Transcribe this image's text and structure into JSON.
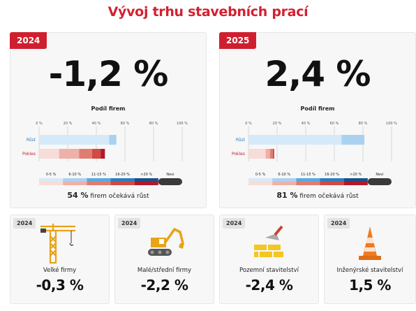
{
  "title": "Vývoj trhu stavebních prací",
  "cards": [
    {
      "year": "2024",
      "headline": "-1,2 %",
      "chart_title": "Podíl firem",
      "axis_ticks": [
        "0 %",
        "20 %",
        "40 %",
        "60 %",
        "80 %",
        "100 %"
      ],
      "row_labels": [
        "Růst",
        "Pokles"
      ],
      "legend_labels": [
        "0-5 %",
        "6-10 %",
        "11-15 %",
        "16-20 %",
        ">20 %",
        "Nevi"
      ],
      "caption_pct": "54 %",
      "caption_text": "firem očekává růst"
    },
    {
      "year": "2025",
      "headline": "2,4 %",
      "chart_title": "Podíl firem",
      "axis_ticks": [
        "0 %",
        "20 %",
        "40 %",
        "60 %",
        "80 %",
        "100 %"
      ],
      "row_labels": [
        "Růst",
        "Pokles"
      ],
      "legend_labels": [
        "0-5 %",
        "6-10 %",
        "11-15 %",
        "16-20 %",
        ">20 %",
        "Nevi"
      ],
      "caption_pct": "81 %",
      "caption_text": "firem očekává růst"
    }
  ],
  "segments": [
    {
      "name": "cards.sectors.large",
      "year": "2024",
      "label": "Velké firmy",
      "value": "-0,3 %",
      "icon": "crane-icon"
    },
    {
      "name": "cards.sectors.small",
      "year": "2024",
      "label": "Malé/střední firmy",
      "value": "-2,2 %",
      "icon": "excavator-icon"
    },
    {
      "name": "cards.sectors.building",
      "year": "2024",
      "label": "Pozemní stavitelství",
      "value": "-2,4 %",
      "icon": "bricks-trowel-icon"
    },
    {
      "name": "cards.sectors.civil",
      "year": "2024",
      "label": "Inženýrské stavitelství",
      "value": "1,5 %",
      "icon": "traffic-cone-icon"
    }
  ],
  "colors": {
    "accent": "#d42030",
    "growth": [
      "#d6e9f8",
      "#a9d2f0",
      "#5aa9e0",
      "#2d7dbf",
      "#1b4f86"
    ],
    "decline": [
      "#f8dcd8",
      "#eeb0a8",
      "#df7d72",
      "#d14a44",
      "#b0182a"
    ],
    "unknown": "#3a3a3a"
  },
  "chart_data": [
    {
      "type": "bar",
      "title": "Podíl firem",
      "year": "2024",
      "categories": [
        "Růst",
        "Pokles"
      ],
      "xlim": [
        0,
        100
      ],
      "series": [
        {
          "name": "0-5 %",
          "values": [
            49,
            14
          ]
        },
        {
          "name": "6-10 %",
          "values": [
            5,
            14
          ]
        },
        {
          "name": "11-15 %",
          "values": [
            0,
            9
          ]
        },
        {
          "name": "16-20 %",
          "values": [
            0,
            6
          ]
        },
        {
          "name": ">20 %",
          "values": [
            0,
            3
          ]
        }
      ]
    },
    {
      "type": "bar",
      "title": "Podíl firem",
      "year": "2025",
      "categories": [
        "Růst",
        "Pokles"
      ],
      "xlim": [
        0,
        100
      ],
      "series": [
        {
          "name": "0-5 %",
          "values": [
            65,
            12
          ]
        },
        {
          "name": "6-10 %",
          "values": [
            16,
            3
          ]
        },
        {
          "name": "11-15 %",
          "values": [
            0,
            2
          ]
        },
        {
          "name": "16-20 %",
          "values": [
            0,
            1
          ]
        },
        {
          "name": ">20 %",
          "values": [
            0,
            0
          ]
        }
      ]
    }
  ]
}
